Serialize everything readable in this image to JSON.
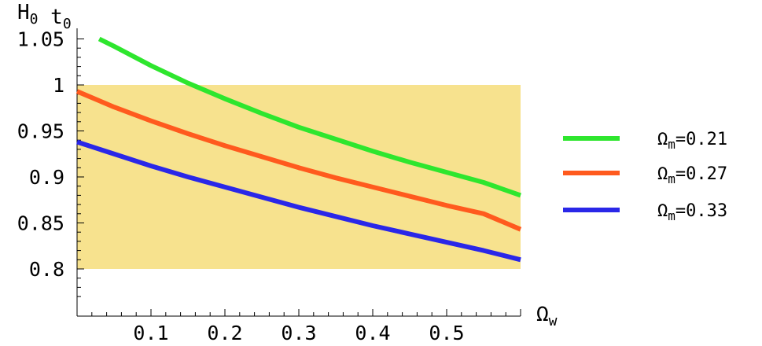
{
  "chart_data": {
    "type": "line",
    "ylabel": "H0 t0",
    "xlabel": "Ωw",
    "xlim": [
      0.0,
      0.6
    ],
    "ylim": [
      0.77,
      1.05
    ],
    "x_ticks": [
      0.1,
      0.2,
      0.3,
      0.4,
      0.5
    ],
    "y_ticks": [
      0.8,
      0.85,
      0.9,
      0.95,
      1.0,
      1.05
    ],
    "y_tick_labels": [
      "0.8",
      "0.85",
      "0.9",
      "0.95",
      "1",
      "1.05"
    ],
    "x_tick_labels": [
      "0.1",
      "0.2",
      "0.3",
      "0.4",
      "0.5"
    ],
    "band": {
      "y_min": 0.8,
      "y_max": 1.0,
      "x_min": 0.0,
      "x_max": 0.6,
      "color": "#f7e28e"
    },
    "grid": false,
    "legend_position": "right",
    "series": [
      {
        "name": "Ωm=0.21",
        "color": "#2ee62e",
        "x": [
          0.03,
          0.05,
          0.1,
          0.15,
          0.2,
          0.25,
          0.3,
          0.35,
          0.4,
          0.45,
          0.5,
          0.55,
          0.6
        ],
        "y": [
          1.05,
          1.042,
          1.021,
          1.002,
          0.985,
          0.969,
          0.954,
          0.941,
          0.928,
          0.916,
          0.905,
          0.894,
          0.88
        ]
      },
      {
        "name": "Ωm=0.27",
        "color": "#ff5a1e",
        "x": [
          0.0,
          0.05,
          0.1,
          0.15,
          0.2,
          0.25,
          0.3,
          0.35,
          0.4,
          0.45,
          0.5,
          0.55,
          0.6
        ],
        "y": [
          0.993,
          0.976,
          0.961,
          0.947,
          0.934,
          0.922,
          0.91,
          0.899,
          0.889,
          0.879,
          0.869,
          0.86,
          0.843
        ]
      },
      {
        "name": "Ωm=0.33",
        "color": "#2a27e8",
        "x": [
          0.0,
          0.05,
          0.1,
          0.15,
          0.2,
          0.25,
          0.3,
          0.35,
          0.4,
          0.45,
          0.5,
          0.55,
          0.6
        ],
        "y": [
          0.938,
          0.925,
          0.912,
          0.9,
          0.889,
          0.878,
          0.867,
          0.857,
          0.847,
          0.838,
          0.829,
          0.82,
          0.81
        ]
      }
    ]
  }
}
